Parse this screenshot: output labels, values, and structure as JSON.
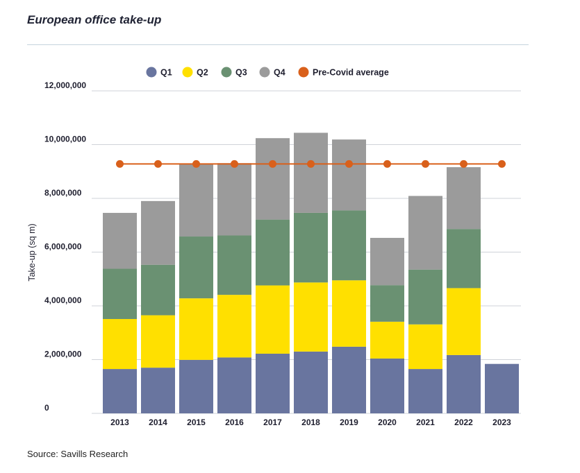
{
  "header": {
    "title": "European office take-up"
  },
  "footer": {
    "source": "Source: Savills Research"
  },
  "colors": {
    "q1": "#69759f",
    "q2": "#ffe000",
    "q3": "#6a9172",
    "q4": "#9b9b9b",
    "precovid": "#d9601b",
    "grid": "#cfd3d8"
  },
  "chart_data": {
    "type": "bar",
    "stacked": true,
    "title": "European office take-up",
    "ylabel": "Take-up (sq m)",
    "xlabel": "",
    "ylim": [
      0,
      12000000
    ],
    "y_ticks": [
      0,
      2000000,
      4000000,
      6000000,
      8000000,
      10000000,
      12000000
    ],
    "y_tick_labels": [
      "0",
      "2,000,000",
      "4,000,000",
      "6,000,000",
      "8,000,000",
      "10,000,000",
      "12,000,000"
    ],
    "categories": [
      "2013",
      "2014",
      "2015",
      "2016",
      "2017",
      "2018",
      "2019",
      "2020",
      "2021",
      "2022",
      "2023"
    ],
    "series": [
      {
        "name": "Q1",
        "values": [
          1650000,
          1700000,
          1990000,
          2080000,
          2220000,
          2300000,
          2480000,
          2040000,
          1650000,
          2170000,
          1840000
        ]
      },
      {
        "name": "Q2",
        "values": [
          1860000,
          1950000,
          2290000,
          2330000,
          2540000,
          2570000,
          2470000,
          1370000,
          1660000,
          2490000,
          0
        ]
      },
      {
        "name": "Q3",
        "values": [
          1870000,
          1880000,
          2300000,
          2210000,
          2450000,
          2590000,
          2600000,
          1360000,
          2040000,
          2200000,
          0
        ]
      },
      {
        "name": "Q4",
        "values": [
          2080000,
          2370000,
          2720000,
          2690000,
          3030000,
          2980000,
          2640000,
          1760000,
          2740000,
          2300000,
          0
        ]
      }
    ],
    "line_series": {
      "name": "Pre-Covid average",
      "values": [
        9280000,
        9280000,
        9280000,
        9280000,
        9280000,
        9280000,
        9280000,
        9280000,
        9280000,
        9280000,
        9280000
      ]
    },
    "legend": [
      "Q1",
      "Q2",
      "Q3",
      "Q4",
      "Pre-Covid average"
    ],
    "legend_position": "top",
    "grid": true
  }
}
